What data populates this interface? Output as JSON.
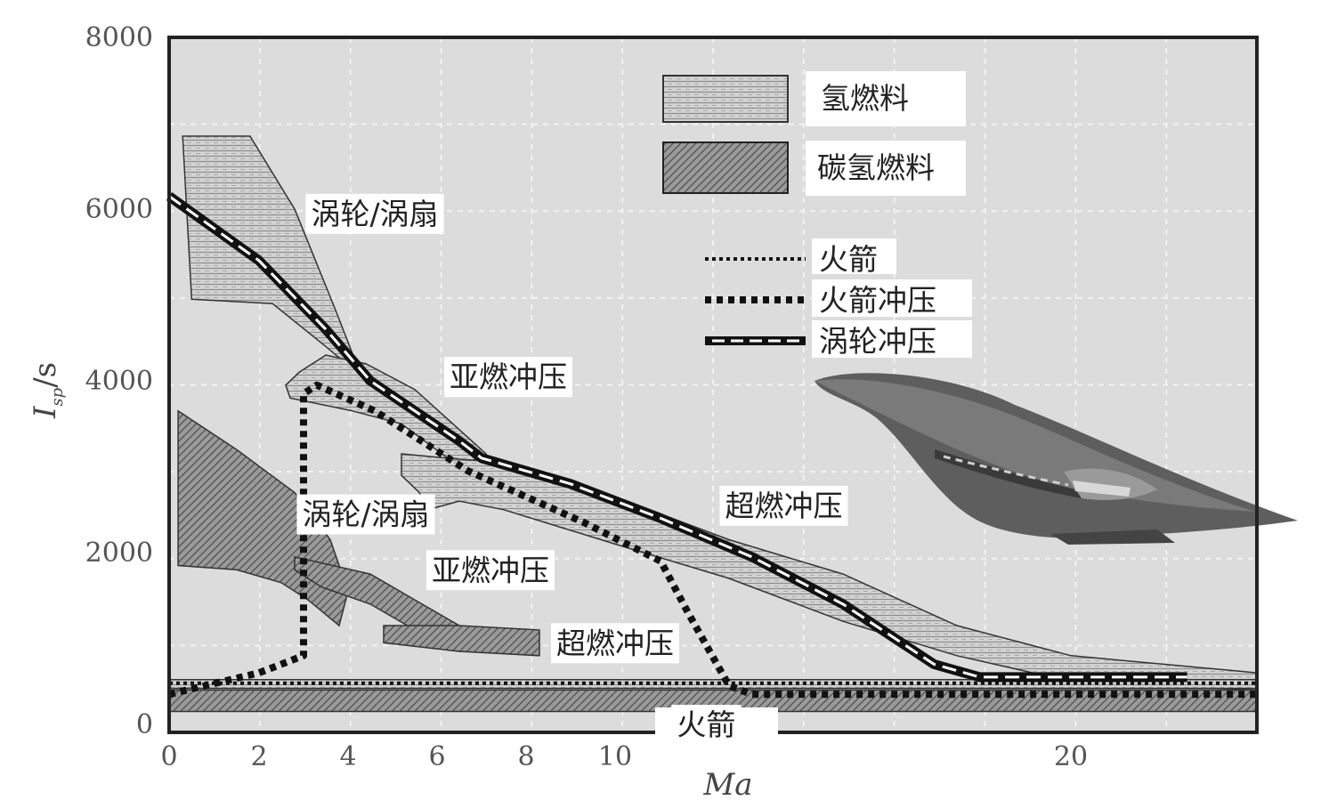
{
  "chart_data": {
    "type": "area",
    "xlabel": "Ma",
    "ylabel": "I_sp/s",
    "ylabel_main": "I",
    "ylabel_sub": "sp",
    "ylabel_unit": "/s",
    "xlim": [
      0,
      24
    ],
    "ylim": [
      0,
      8000
    ],
    "x_ticks": [
      0,
      2,
      4,
      6,
      8,
      10,
      20
    ],
    "y_ticks": [
      0,
      2000,
      4000,
      6000,
      8000
    ],
    "grid": true,
    "legend": [
      {
        "name": "氢燃料",
        "style": "horizontal-hatch"
      },
      {
        "name": "碳氢燃料",
        "style": "diagonal-hatch"
      },
      {
        "name": "火箭",
        "style": "dotted"
      },
      {
        "name": "火箭冲压",
        "style": "dashed-thick"
      },
      {
        "name": "涡轮冲压",
        "style": "black-white-dash"
      }
    ],
    "regions": [
      {
        "name": "涡轮/涡扇",
        "fuel": "氢燃料",
        "polygon": [
          [
            0.3,
            6850
          ],
          [
            1.8,
            6850
          ],
          [
            2.8,
            6000
          ],
          [
            3.7,
            4850
          ],
          [
            4.3,
            4050
          ],
          [
            3.5,
            4400
          ],
          [
            2.3,
            4900
          ],
          [
            0.5,
            4950
          ]
        ]
      },
      {
        "name": "亚燃冲压",
        "fuel": "氢燃料",
        "polygon": [
          [
            2.6,
            3950
          ],
          [
            2.9,
            4100
          ],
          [
            3.5,
            4300
          ],
          [
            4.4,
            4200
          ],
          [
            5.5,
            3900
          ],
          [
            7.1,
            3150
          ],
          [
            6.5,
            3000
          ],
          [
            5.2,
            3500
          ],
          [
            4.1,
            3650
          ],
          [
            2.7,
            3800
          ]
        ]
      },
      {
        "name": "超燃冲压",
        "fuel": "氢燃料",
        "polygon": [
          [
            5.2,
            3150
          ],
          [
            6.2,
            3100
          ],
          [
            7.5,
            3050
          ],
          [
            10,
            2650
          ],
          [
            12.5,
            2150
          ],
          [
            15,
            1750
          ],
          [
            17.5,
            1150
          ],
          [
            20,
            800
          ],
          [
            24,
            600
          ],
          [
            24,
            400
          ],
          [
            20,
            500
          ],
          [
            17.5,
            800
          ],
          [
            15,
            1200
          ],
          [
            12.5,
            1700
          ],
          [
            10,
            2100
          ],
          [
            7.5,
            2500
          ],
          [
            6.5,
            2600
          ],
          [
            5.8,
            2500
          ],
          [
            5.6,
            2700
          ],
          [
            5.2,
            2900
          ]
        ]
      },
      {
        "name": "涡轮/涡扇",
        "fuel": "碳氢燃料",
        "polygon": [
          [
            0.2,
            3650
          ],
          [
            1.5,
            3200
          ],
          [
            2.8,
            2700
          ],
          [
            3.6,
            2150
          ],
          [
            4,
            1550
          ],
          [
            3.8,
            1150
          ],
          [
            3.1,
            1450
          ],
          [
            2.5,
            1650
          ],
          [
            1.5,
            1800
          ],
          [
            0.2,
            1850
          ]
        ]
      },
      {
        "name": "亚燃冲压",
        "fuel": "碳氢燃料",
        "polygon": [
          [
            2.8,
            1950
          ],
          [
            4.5,
            1750
          ],
          [
            5.5,
            1450
          ],
          [
            6.5,
            1150
          ],
          [
            5.5,
            1100
          ],
          [
            4.5,
            1400
          ],
          [
            3.4,
            1600
          ],
          [
            2.8,
            1800
          ]
        ]
      },
      {
        "name": "超燃冲压",
        "fuel": "碳氢燃料",
        "polygon": [
          [
            4.8,
            1150
          ],
          [
            6.5,
            1150
          ],
          [
            8.3,
            1100
          ],
          [
            8.3,
            800
          ],
          [
            6.5,
            850
          ],
          [
            4.8,
            950
          ]
        ]
      },
      {
        "name": "火箭",
        "fuel": "氢燃料",
        "polygon": [
          [
            0,
            520
          ],
          [
            24,
            520
          ],
          [
            24,
            420
          ],
          [
            0,
            420
          ]
        ]
      },
      {
        "name": "火箭",
        "fuel": "碳氢燃料",
        "polygon": [
          [
            0,
            400
          ],
          [
            24,
            400
          ],
          [
            24,
            150
          ],
          [
            0,
            150
          ]
        ]
      }
    ],
    "series": [
      {
        "name": "火箭",
        "style": "dotted",
        "x": [
          0,
          24
        ],
        "y": [
          480,
          480
        ]
      },
      {
        "name": "火箭冲压",
        "style": "dashed-thick",
        "x": [
          0,
          2,
          3.0,
          3.0,
          3.3,
          4.6,
          6.7,
          9.3,
          11.0,
          11.6,
          12.5,
          13.0,
          24
        ],
        "y": [
          350,
          600,
          800,
          3850,
          3950,
          3650,
          2950,
          2350,
          1900,
          1300,
          450,
          350,
          350
        ]
      },
      {
        "name": "涡轮冲压",
        "style": "black-white-dash",
        "x": [
          0,
          2,
          3.5,
          4.5,
          6.5,
          7.0,
          9,
          11,
          13,
          15,
          17,
          18,
          22.5
        ],
        "y": [
          6150,
          5400,
          4600,
          4000,
          3300,
          3100,
          2800,
          2400,
          1950,
          1400,
          700,
          550,
          550
        ]
      }
    ],
    "annotations": [
      {
        "text": "涡轮/涡扇",
        "x": 4.6,
        "y": 5950
      },
      {
        "text": "亚燃冲压",
        "x": 7.6,
        "y": 4050
      },
      {
        "text": "超燃冲压",
        "x": 13.7,
        "y": 2550
      },
      {
        "text": "涡轮/涡扇",
        "x": 4.4,
        "y": 2450
      },
      {
        "text": "亚燃冲压",
        "x": 7.2,
        "y": 1800
      },
      {
        "text": "超燃冲压",
        "x": 10.0,
        "y": 950
      },
      {
        "text": "火箭",
        "x": 12.0,
        "y": 0
      }
    ],
    "colors": {
      "background": "#dcdcdc",
      "grid": "#f2f2f2",
      "frame": "#222222",
      "hydrogen_fill": "#cfcfcf",
      "hydrocarbon_fill": "#8a8a8a",
      "line": "#111111",
      "vehicle": "#555555"
    }
  }
}
